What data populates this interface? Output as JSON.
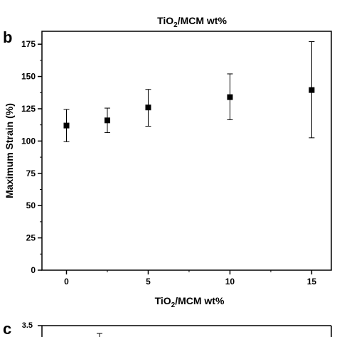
{
  "top_strip": {
    "xlabel": "TiO2/MCM wt%"
  },
  "panel_b": {
    "letter": "b",
    "chart_data": {
      "type": "scatter",
      "xlabel": "TiO2/MCM wt%",
      "ylabel": "Maximum Strain (%)",
      "xlim": [
        -1.5,
        16.2
      ],
      "ylim": [
        0,
        185
      ],
      "xticks": [
        "0",
        "5",
        "10",
        "15"
      ],
      "yticks": [
        "0",
        "25",
        "50",
        "75",
        "100",
        "125",
        "150",
        "175"
      ],
      "x": [
        0,
        2.5,
        5,
        10,
        15
      ],
      "y": [
        112,
        116,
        126,
        134,
        139.5
      ],
      "err_low": [
        99.5,
        106.5,
        111.5,
        116.5,
        102.5
      ],
      "err_high": [
        124.5,
        125.5,
        140,
        152,
        177
      ],
      "marker": "square",
      "color": "#000000",
      "grid": false
    }
  },
  "panel_c": {
    "letter": "c",
    "first_ytick": "3.5"
  }
}
